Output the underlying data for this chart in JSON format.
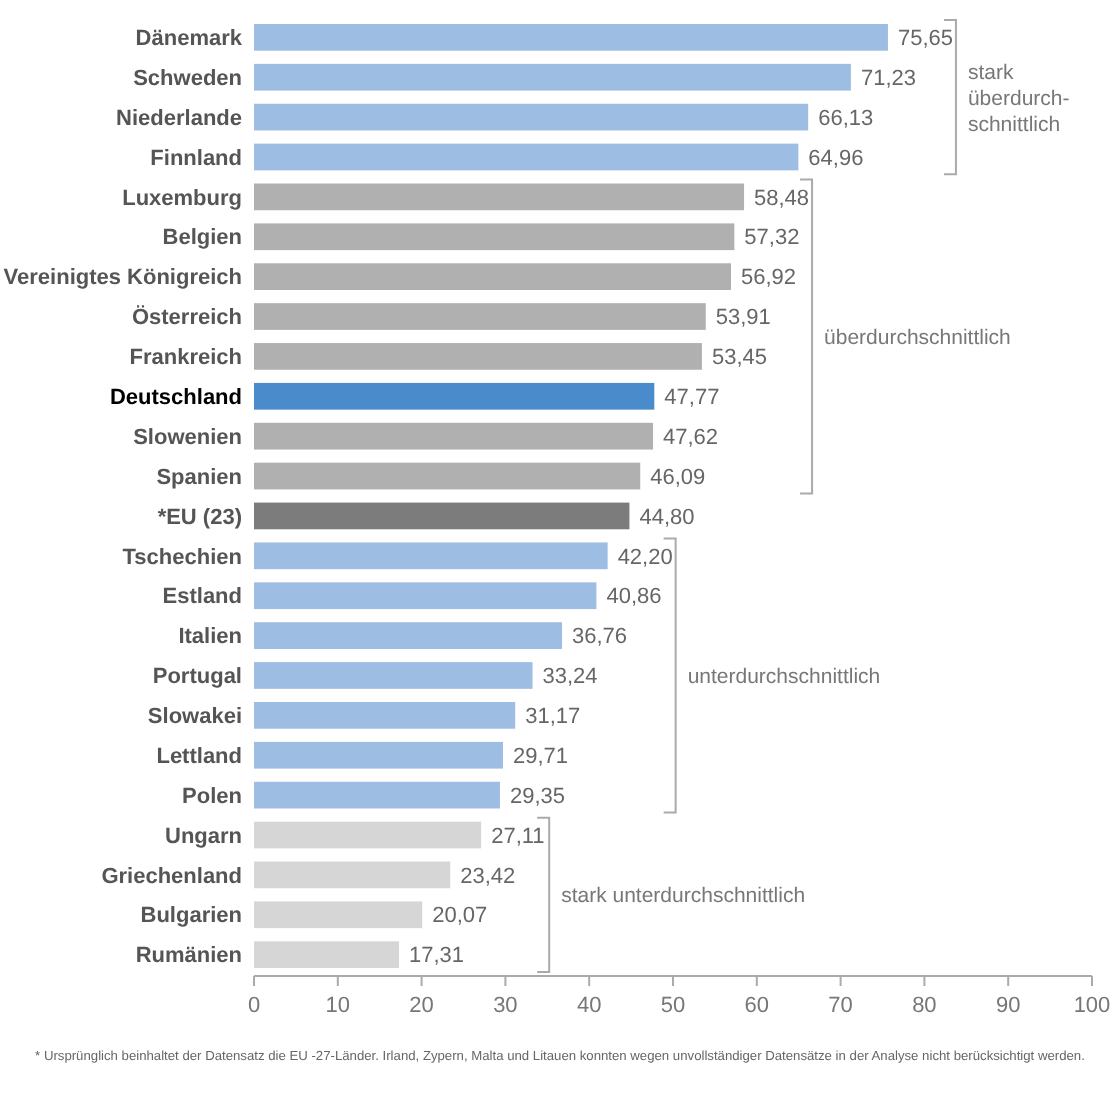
{
  "chart_data": {
    "type": "bar",
    "orientation": "horizontal",
    "categories": [
      "Dänemark",
      "Schweden",
      "Niederlande",
      "Finnland",
      "Luxemburg",
      "Belgien",
      "Vereinigtes Königreich",
      "Österreich",
      "Frankreich",
      "Deutschland",
      "Slowenien",
      "Spanien",
      "*EU (23)",
      "Tschechien",
      "Estland",
      "Italien",
      "Portugal",
      "Slowakei",
      "Lettland",
      "Polen",
      "Ungarn",
      "Griechenland",
      "Bulgarien",
      "Rumänien"
    ],
    "values": [
      75.65,
      71.23,
      66.13,
      64.96,
      58.48,
      57.32,
      56.92,
      53.91,
      53.45,
      47.77,
      47.62,
      46.09,
      44.8,
      42.2,
      40.86,
      36.76,
      33.24,
      31.17,
      29.71,
      29.35,
      27.11,
      23.42,
      20.07,
      17.31
    ],
    "value_labels": [
      "75,65",
      "71,23",
      "66,13",
      "64,96",
      "58,48",
      "57,32",
      "56,92",
      "53,91",
      "53,45",
      "47,77",
      "47,62",
      "46,09",
      "44,80",
      "42,20",
      "40,86",
      "36,76",
      "33,24",
      "31,17",
      "29,71",
      "29,35",
      "27,11",
      "23,42",
      "20,07",
      "17,31"
    ],
    "colors": [
      "#9dbde3",
      "#9dbde3",
      "#9dbde3",
      "#9dbde3",
      "#b0b0b0",
      "#b0b0b0",
      "#b0b0b0",
      "#b0b0b0",
      "#b0b0b0",
      "#4a8ccb",
      "#b0b0b0",
      "#b0b0b0",
      "#7c7c7c",
      "#9dbde3",
      "#9dbde3",
      "#9dbde3",
      "#9dbde3",
      "#9dbde3",
      "#9dbde3",
      "#9dbde3",
      "#d6d6d6",
      "#d6d6d6",
      "#d6d6d6",
      "#d6d6d6"
    ],
    "xlim": [
      0,
      100
    ],
    "xticks": [
      0,
      10,
      20,
      30,
      40,
      50,
      60,
      70,
      80,
      90,
      100
    ],
    "grid": false,
    "annotations": [
      "stark überdurch-schnittlich",
      "überdurchschnittlich",
      "unterdurchschnittlich",
      "stark unterdurchschnittlich",
      "* Ursprünglich beinhaltet der Datensatz die EU -27-Länder. Irland, Zypern, Malta und Litauen konnten wegen unvollständiger Datensätze in der Analyse nicht berücksichtigt werden."
    ]
  }
}
